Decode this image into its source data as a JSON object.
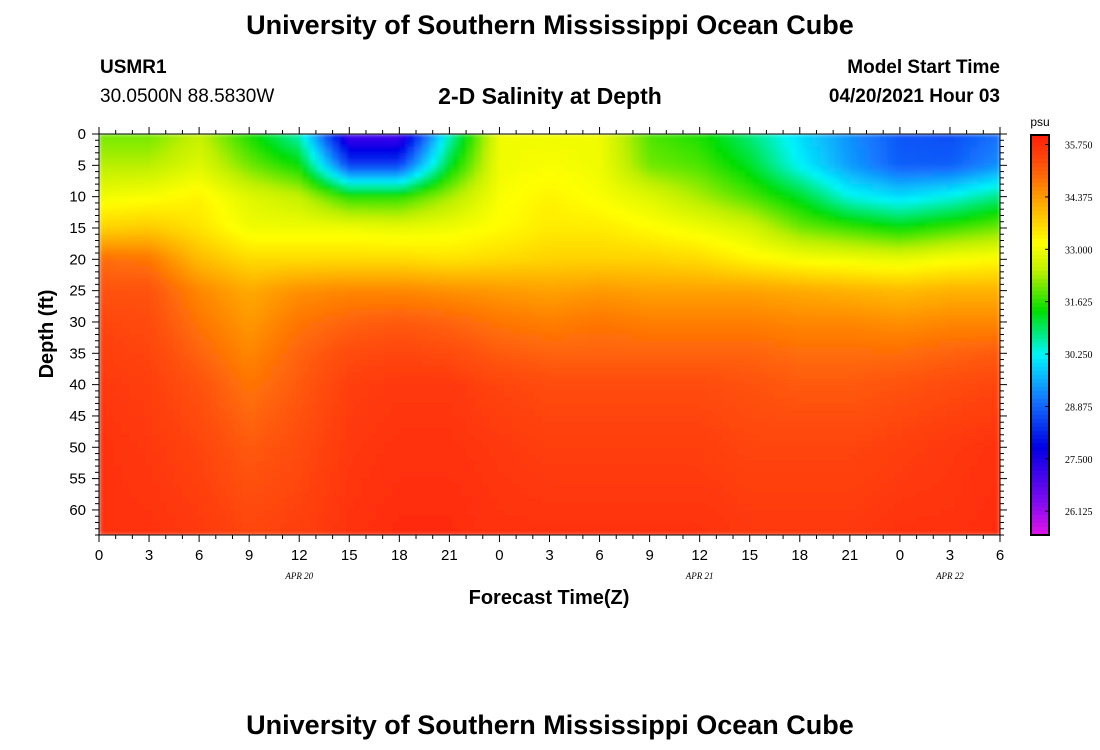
{
  "header": {
    "title_top": "University of Southern Mississippi Ocean Cube",
    "title_bottom": "University of Southern Mississippi Ocean Cube",
    "station_id": "USMR1",
    "station_coords": "30.0500N  88.5830W",
    "plot_subtitle": "2-D Salinity at Depth",
    "model_start_label": "Model Start Time",
    "model_start_value": "04/20/2021 Hour 03"
  },
  "chart_data": {
    "type": "heatmap",
    "title": "2-D Salinity at Depth",
    "xlabel": "Forecast Time(Z)",
    "ylabel": "Depth (ft)",
    "colorbar_unit": "psu",
    "x_range_hours": [
      0,
      54
    ],
    "y_range_ft": [
      0,
      64
    ],
    "x_ticks": [
      {
        "h": 0,
        "label": "0"
      },
      {
        "h": 3,
        "label": "3"
      },
      {
        "h": 6,
        "label": "6"
      },
      {
        "h": 9,
        "label": "9"
      },
      {
        "h": 12,
        "label": "12"
      },
      {
        "h": 15,
        "label": "15"
      },
      {
        "h": 18,
        "label": "18"
      },
      {
        "h": 21,
        "label": "21"
      },
      {
        "h": 24,
        "label": "0"
      },
      {
        "h": 27,
        "label": "3"
      },
      {
        "h": 30,
        "label": "6"
      },
      {
        "h": 33,
        "label": "9"
      },
      {
        "h": 36,
        "label": "12"
      },
      {
        "h": 39,
        "label": "15"
      },
      {
        "h": 42,
        "label": "18"
      },
      {
        "h": 45,
        "label": "21"
      },
      {
        "h": 48,
        "label": "0"
      },
      {
        "h": 51,
        "label": "3"
      },
      {
        "h": 54,
        "label": "6"
      }
    ],
    "date_labels": [
      {
        "h": 12,
        "label": "APR 20"
      },
      {
        "h": 36,
        "label": "APR 21"
      },
      {
        "h": 51,
        "label": "APR 22"
      }
    ],
    "y_ticks": [
      0,
      5,
      10,
      15,
      20,
      25,
      30,
      35,
      40,
      45,
      50,
      55,
      60
    ],
    "colorbar_ticks": [
      "35.750",
      "34.375",
      "33.000",
      "31.625",
      "30.250",
      "28.875",
      "27.500",
      "26.125"
    ],
    "colorbar_range": [
      25.5,
      36.0
    ],
    "salinity_grid": {
      "hours": [
        0,
        3,
        6,
        9,
        12,
        15,
        18,
        21,
        24,
        27,
        30,
        33,
        36,
        39,
        42,
        45,
        48,
        51,
        54
      ],
      "depths": [
        0,
        5,
        10,
        15,
        20,
        25,
        30,
        35,
        40,
        50,
        64
      ],
      "values": [
        [
          32.0,
          32.0,
          32.5,
          31.5,
          30.5,
          27.0,
          27.0,
          30.5,
          33.0,
          33.0,
          33.0,
          31.8,
          31.5,
          30.8,
          30.0,
          29.3,
          28.7,
          28.6,
          29.0
        ],
        [
          32.4,
          32.4,
          32.8,
          32.0,
          31.4,
          28.5,
          28.5,
          31.2,
          33.0,
          33.1,
          33.0,
          32.0,
          31.8,
          31.2,
          30.2,
          29.4,
          28.8,
          28.8,
          29.3
        ],
        [
          33.0,
          33.1,
          33.3,
          32.8,
          32.5,
          31.6,
          31.6,
          32.3,
          33.1,
          33.3,
          33.1,
          32.8,
          32.3,
          31.8,
          31.2,
          30.3,
          30.0,
          30.3,
          30.8
        ],
        [
          33.7,
          33.8,
          33.5,
          33.0,
          33.0,
          33.0,
          32.9,
          33.0,
          33.2,
          33.4,
          33.4,
          33.2,
          33.0,
          32.7,
          32.0,
          31.7,
          31.4,
          31.7,
          32.0
        ],
        [
          34.9,
          34.8,
          34.0,
          33.6,
          33.6,
          33.6,
          33.6,
          33.5,
          33.6,
          33.7,
          33.7,
          33.7,
          33.6,
          33.3,
          33.1,
          33.0,
          32.9,
          33.1,
          33.2
        ],
        [
          35.2,
          35.2,
          34.6,
          34.2,
          34.5,
          34.6,
          34.6,
          34.5,
          34.4,
          34.3,
          34.4,
          34.3,
          34.3,
          34.3,
          34.2,
          34.1,
          34.0,
          34.1,
          34.1
        ],
        [
          35.4,
          35.3,
          34.8,
          34.4,
          34.8,
          35.0,
          35.1,
          35.0,
          34.8,
          34.7,
          34.8,
          34.7,
          34.7,
          34.7,
          34.6,
          34.6,
          34.5,
          34.6,
          34.6
        ],
        [
          35.5,
          35.4,
          35.0,
          34.6,
          35.0,
          35.3,
          35.4,
          35.3,
          35.1,
          35.0,
          35.0,
          35.0,
          35.0,
          35.0,
          34.9,
          34.9,
          34.9,
          35.0,
          35.1
        ],
        [
          35.6,
          35.5,
          35.2,
          34.8,
          35.1,
          35.5,
          35.6,
          35.6,
          35.4,
          35.3,
          35.3,
          35.3,
          35.3,
          35.2,
          35.1,
          35.1,
          35.2,
          35.3,
          35.4
        ],
        [
          35.7,
          35.6,
          35.4,
          35.1,
          35.3,
          35.6,
          35.7,
          35.7,
          35.6,
          35.5,
          35.5,
          35.5,
          35.5,
          35.4,
          35.4,
          35.4,
          35.5,
          35.6,
          35.7
        ],
        [
          35.7,
          35.7,
          35.6,
          35.4,
          35.5,
          35.7,
          35.8,
          35.8,
          35.7,
          35.7,
          35.7,
          35.7,
          35.7,
          35.6,
          35.6,
          35.6,
          35.7,
          35.7,
          35.8
        ]
      ]
    }
  }
}
